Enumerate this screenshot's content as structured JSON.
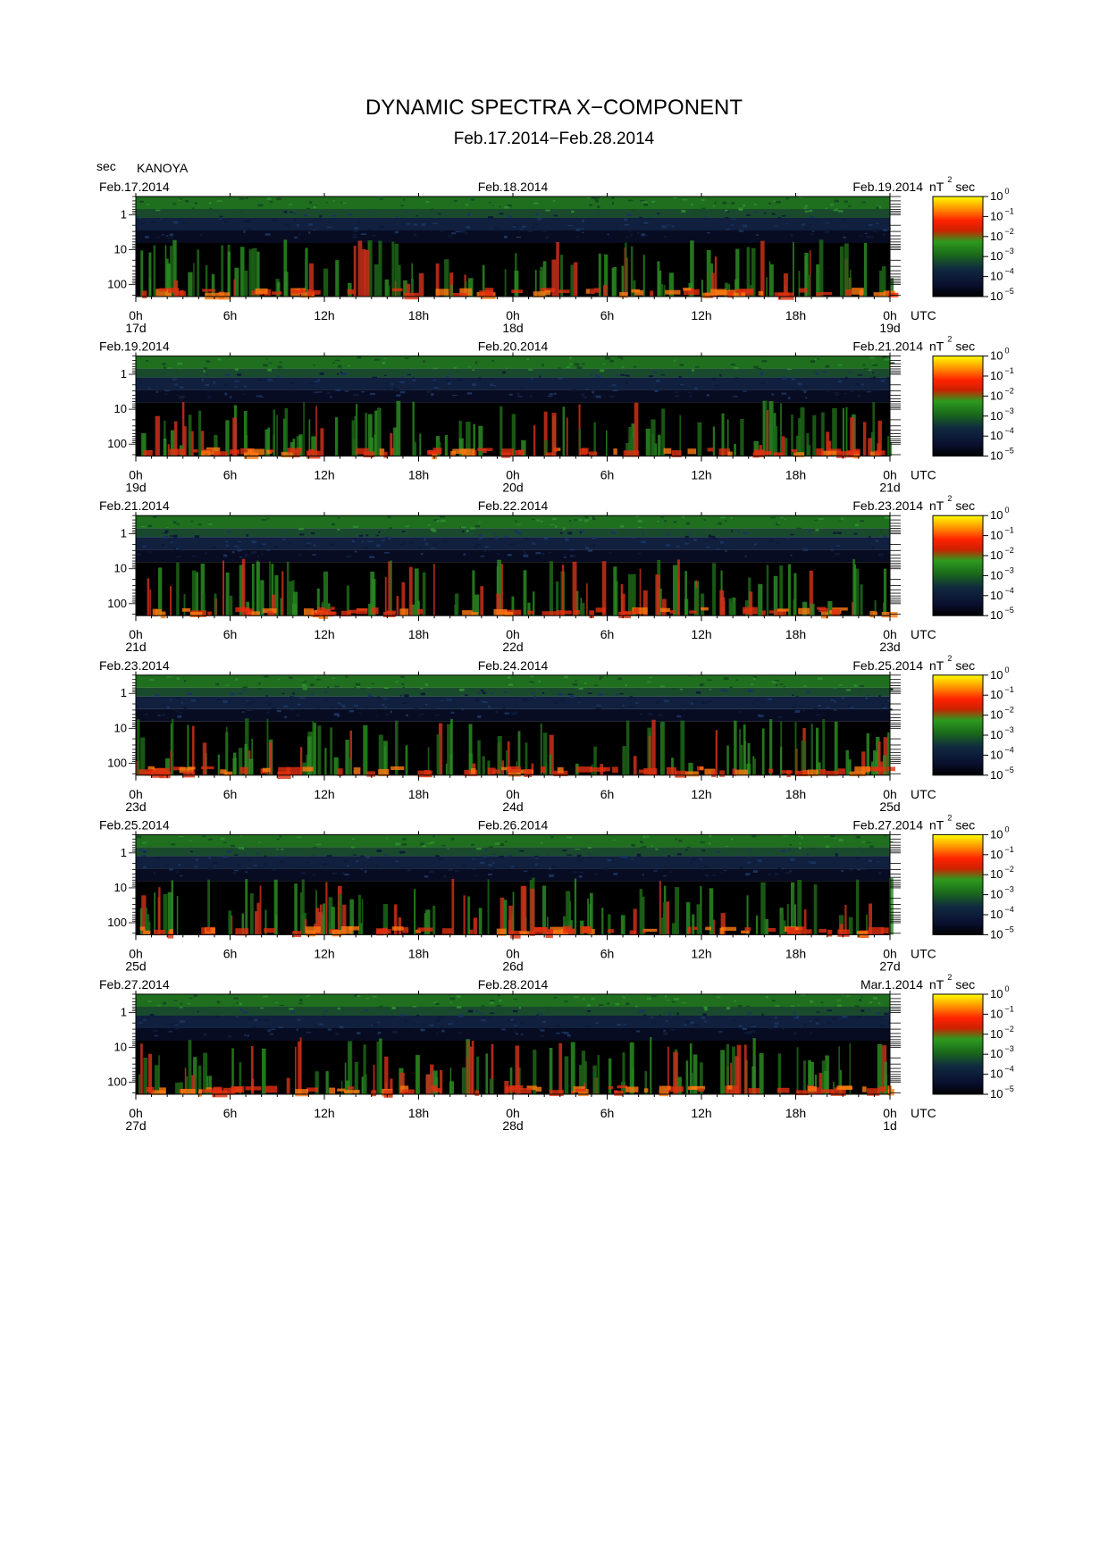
{
  "chart_data": {
    "type": "heatmap",
    "title": "DYNAMIC SPECTRA X−COMPONENT",
    "subtitle": "Feb.17.2014−Feb.28.2014",
    "station": "KANOYA",
    "y_unit": "sec",
    "y_scale": "log",
    "y_ticks": [
      "1",
      "10",
      "100"
    ],
    "x_ticks": [
      "0h",
      "6h",
      "12h",
      "18h",
      "0h",
      "6h",
      "12h",
      "18h",
      "0h"
    ],
    "x_unit": "UTC",
    "colorbar": {
      "unit": "nT",
      "unit_sup": "2",
      "unit_tail": "sec",
      "scale": "log",
      "levels": [
        {
          "base": "10",
          "exp": "0"
        },
        {
          "base": "10",
          "exp": "−1"
        },
        {
          "base": "10",
          "exp": "−2"
        },
        {
          "base": "10",
          "exp": "−3"
        },
        {
          "base": "10",
          "exp": "−4"
        },
        {
          "base": "10",
          "exp": "−5"
        }
      ],
      "colors": [
        "#ffff00",
        "#ff8800",
        "#ff1100",
        "#208020",
        "#101840",
        "#000000"
      ]
    },
    "panels": [
      {
        "date_left": "Feb.17.2014",
        "date_mid": "Feb.18.2014",
        "date_right": "Feb.19.2014",
        "day_labels": [
          "17d",
          "18d",
          "19d"
        ]
      },
      {
        "date_left": "Feb.19.2014",
        "date_mid": "Feb.20.2014",
        "date_right": "Feb.21.2014",
        "day_labels": [
          "19d",
          "20d",
          "21d"
        ]
      },
      {
        "date_left": "Feb.21.2014",
        "date_mid": "Feb.22.2014",
        "date_right": "Feb.23.2014",
        "day_labels": [
          "21d",
          "22d",
          "23d"
        ]
      },
      {
        "date_left": "Feb.23.2014",
        "date_mid": "Feb.24.2014",
        "date_right": "Feb.25.2014",
        "day_labels": [
          "23d",
          "24d",
          "25d"
        ]
      },
      {
        "date_left": "Feb.25.2014",
        "date_mid": "Feb.26.2014",
        "date_right": "Feb.27.2014",
        "day_labels": [
          "25d",
          "26d",
          "27d"
        ]
      },
      {
        "date_left": "Feb.27.2014",
        "date_mid": "Feb.28.2014",
        "date_right": "Mar.1.2014",
        "day_labels": [
          "27d",
          "28d",
          "1d"
        ]
      }
    ]
  }
}
